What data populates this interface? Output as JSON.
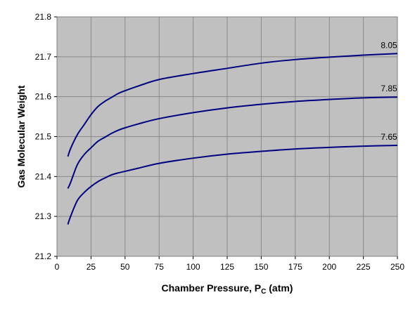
{
  "chart_data": {
    "type": "line",
    "title": "",
    "xlabel": "Chamber Pressure, P",
    "xlabel_subscript": "C",
    "xlabel_unit": " (atm)",
    "ylabel": "Gas Molecular Weight",
    "xlim": [
      0,
      250
    ],
    "ylim": [
      21.2,
      21.8
    ],
    "x_ticks": [
      0,
      25,
      50,
      75,
      100,
      125,
      150,
      175,
      200,
      225,
      250
    ],
    "y_ticks": [
      21.2,
      21.3,
      21.4,
      21.5,
      21.6,
      21.7,
      21.8
    ],
    "grid": true,
    "plot_background": "#c0c0c0",
    "line_color": "#000080",
    "x": [
      8,
      10,
      15,
      20,
      25,
      30,
      35,
      40,
      45,
      50,
      60,
      75,
      100,
      125,
      150,
      175,
      200,
      225,
      250
    ],
    "series": [
      {
        "label": "8.05",
        "values": [
          21.45,
          21.47,
          21.505,
          21.53,
          21.555,
          21.575,
          21.588,
          21.598,
          21.608,
          21.615,
          21.627,
          21.643,
          21.658,
          21.671,
          21.684,
          21.693,
          21.699,
          21.704,
          21.708
        ]
      },
      {
        "label": "7.85",
        "values": [
          21.37,
          21.385,
          21.43,
          21.455,
          21.472,
          21.488,
          21.498,
          21.508,
          21.516,
          21.522,
          21.532,
          21.545,
          21.56,
          21.572,
          21.581,
          21.588,
          21.593,
          21.597,
          21.599
        ]
      },
      {
        "label": "7.65",
        "values": [
          21.28,
          21.3,
          21.34,
          21.36,
          21.375,
          21.387,
          21.396,
          21.404,
          21.409,
          21.413,
          21.421,
          21.433,
          21.446,
          21.456,
          21.463,
          21.469,
          21.473,
          21.476,
          21.478
        ]
      }
    ]
  }
}
